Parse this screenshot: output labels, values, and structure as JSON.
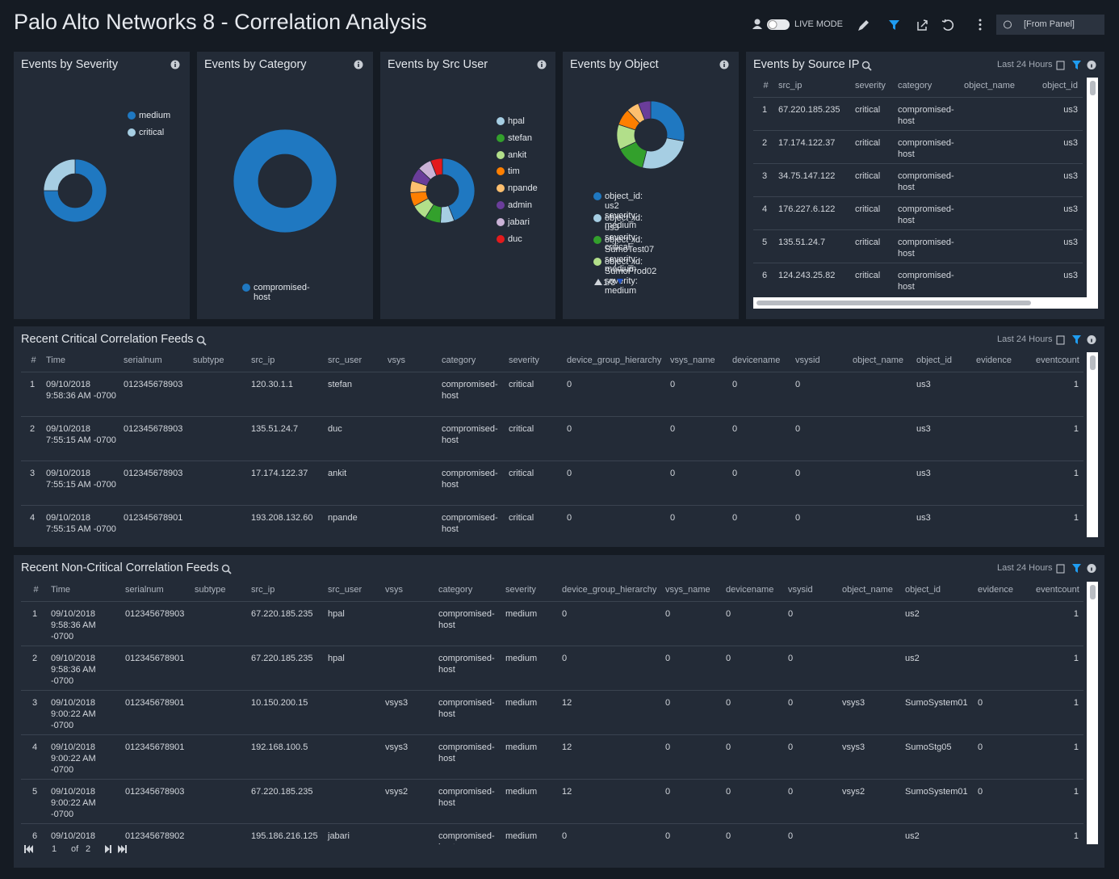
{
  "header": {
    "title": "Palo Alto Networks 8 - Correlation Analysis",
    "live_mode": "LIVE MODE",
    "time_range": "[From Panel]"
  },
  "chart_data": [
    {
      "type": "pie",
      "title": "Events by Severity",
      "categories": [
        "medium",
        "critical"
      ],
      "colors": [
        "#1f78c1",
        "#a6cee3"
      ],
      "values": [
        75,
        25
      ]
    },
    {
      "type": "pie",
      "title": "Events by Category",
      "categories": [
        "compromised-host"
      ],
      "colors": [
        "#1f78c1"
      ],
      "values": [
        100
      ]
    },
    {
      "type": "pie",
      "title": "Events by Src User",
      "categories": [
        null,
        "hpal",
        "stefan",
        "ankit",
        "tim",
        "npande",
        "admin",
        "jabari",
        "duc"
      ],
      "colors": [
        "#1f78c1",
        "#a6cee3",
        "#33a02c",
        "#b2df8a",
        "#ff7f00",
        "#fdbf6f",
        "#6a3d9a",
        "#cab2d6",
        "#e31a1c"
      ],
      "values": [
        44,
        7,
        8,
        8,
        7,
        6,
        7,
        7,
        6
      ]
    },
    {
      "type": "pie",
      "title": "Events by Object",
      "categories": [
        "object_id: us2\nseverity: medium",
        "object_id: us3\nseverity: critical",
        "object_id: SumoTest07\nseverity: medium",
        "object_id: SumoProd02\nseverity: medium",
        null,
        null,
        null
      ],
      "colors": [
        "#1f78c1",
        "#a6cee3",
        "#33a02c",
        "#b2df8a",
        "#ff7f00",
        "#fdbf6f",
        "#6a3d9a"
      ],
      "values": [
        28,
        26,
        14,
        12,
        8,
        6,
        6
      ],
      "legend_page": "1/3"
    }
  ],
  "source_ip_panel": {
    "title": "Events by Source IP",
    "time_range": "Last 24 Hours",
    "columns": [
      "#",
      "src_ip",
      "severity",
      "category",
      "object_name",
      "object_id"
    ],
    "rows": [
      [
        1,
        "67.220.185.235",
        "critical",
        "compromised-host",
        null,
        "us3"
      ],
      [
        2,
        "17.174.122.37",
        "critical",
        "compromised-host",
        null,
        "us3"
      ],
      [
        3,
        "34.75.147.122",
        "critical",
        "compromised-host",
        null,
        "us3"
      ],
      [
        4,
        "176.227.6.122",
        "critical",
        "compromised-host",
        null,
        "us3"
      ],
      [
        5,
        "135.51.24.7",
        "critical",
        "compromised-host",
        null,
        "us3"
      ],
      [
        6,
        "124.243.25.82",
        "critical",
        "compromised-host",
        null,
        "us3"
      ]
    ]
  },
  "critical_panel": {
    "title": "Recent Critical Correlation Feeds",
    "time_range": "Last 24 Hours",
    "columns": [
      "#",
      "Time",
      "serialnum",
      "subtype",
      "src_ip",
      "src_user",
      "vsys",
      "category",
      "severity",
      "device_group_hierarchy",
      "vsys_name",
      "devicename",
      "vsysid",
      "object_name",
      "object_id",
      "evidence",
      "eventcount"
    ],
    "rows": [
      [
        1,
        "09/10/2018 9:58:36 AM -0700",
        "012345678903",
        null,
        "120.30.1.1",
        "stefan",
        null,
        "compromised-host",
        "critical",
        0,
        0,
        0,
        0,
        null,
        "us3",
        null,
        1
      ],
      [
        2,
        "09/10/2018 7:55:15 AM -0700",
        "012345678903",
        null,
        "135.51.24.7",
        "duc",
        null,
        "compromised-host",
        "critical",
        0,
        0,
        0,
        0,
        null,
        "us3",
        null,
        1
      ],
      [
        3,
        "09/10/2018 7:55:15 AM -0700",
        "012345678903",
        null,
        "17.174.122.37",
        "ankit",
        null,
        "compromised-host",
        "critical",
        0,
        0,
        0,
        0,
        null,
        "us3",
        null,
        1
      ],
      [
        4,
        "09/10/2018 7:55:15 AM -0700",
        "012345678901",
        null,
        "193.208.132.60",
        "npande",
        null,
        "compromised-host",
        "critical",
        0,
        0,
        0,
        0,
        null,
        "us3",
        null,
        1
      ]
    ]
  },
  "noncritical_panel": {
    "title": "Recent Non-Critical Correlation Feeds",
    "time_range": "Last 24 Hours",
    "columns": [
      "#",
      "Time",
      "serialnum",
      "subtype",
      "src_ip",
      "src_user",
      "vsys",
      "category",
      "severity",
      "device_group_hierarchy",
      "vsys_name",
      "devicename",
      "vsysid",
      "object_name",
      "object_id",
      "evidence",
      "eventcount"
    ],
    "rows": [
      [
        1,
        "09/10/2018 9:58:36 AM -0700",
        "012345678903",
        null,
        "67.220.185.235",
        "hpal",
        null,
        "compromised-host",
        "medium",
        0,
        0,
        0,
        0,
        null,
        "us2",
        null,
        1
      ],
      [
        2,
        "09/10/2018 9:58:36 AM -0700",
        "012345678901",
        null,
        "67.220.185.235",
        "hpal",
        null,
        "compromised-host",
        "medium",
        0,
        0,
        0,
        0,
        null,
        "us2",
        null,
        1
      ],
      [
        3,
        "09/10/2018 9:00:22 AM -0700",
        "012345678901",
        null,
        "10.150.200.15",
        null,
        "vsys3",
        "compromised-host",
        "medium",
        12,
        0,
        0,
        0,
        "vsys3",
        "SumoSystem01",
        0,
        1
      ],
      [
        4,
        "09/10/2018 9:00:22 AM -0700",
        "012345678901",
        null,
        "192.168.100.5",
        null,
        "vsys3",
        "compromised-host",
        "medium",
        12,
        0,
        0,
        0,
        "vsys3",
        "SumoStg05",
        0,
        1
      ],
      [
        5,
        "09/10/2018 9:00:22 AM -0700",
        "012345678903",
        null,
        "67.220.185.235",
        null,
        "vsys2",
        "compromised-host",
        "medium",
        12,
        0,
        0,
        0,
        "vsys2",
        "SumoSystem01",
        0,
        1
      ],
      [
        6,
        "09/10/2018",
        "012345678902",
        null,
        "195.186.216.125",
        "jabari",
        null,
        "compromised-host",
        "medium",
        0,
        0,
        0,
        0,
        null,
        "us2",
        null,
        1
      ]
    ],
    "pagination": {
      "current": "1",
      "of": "of",
      "total": "2"
    }
  }
}
